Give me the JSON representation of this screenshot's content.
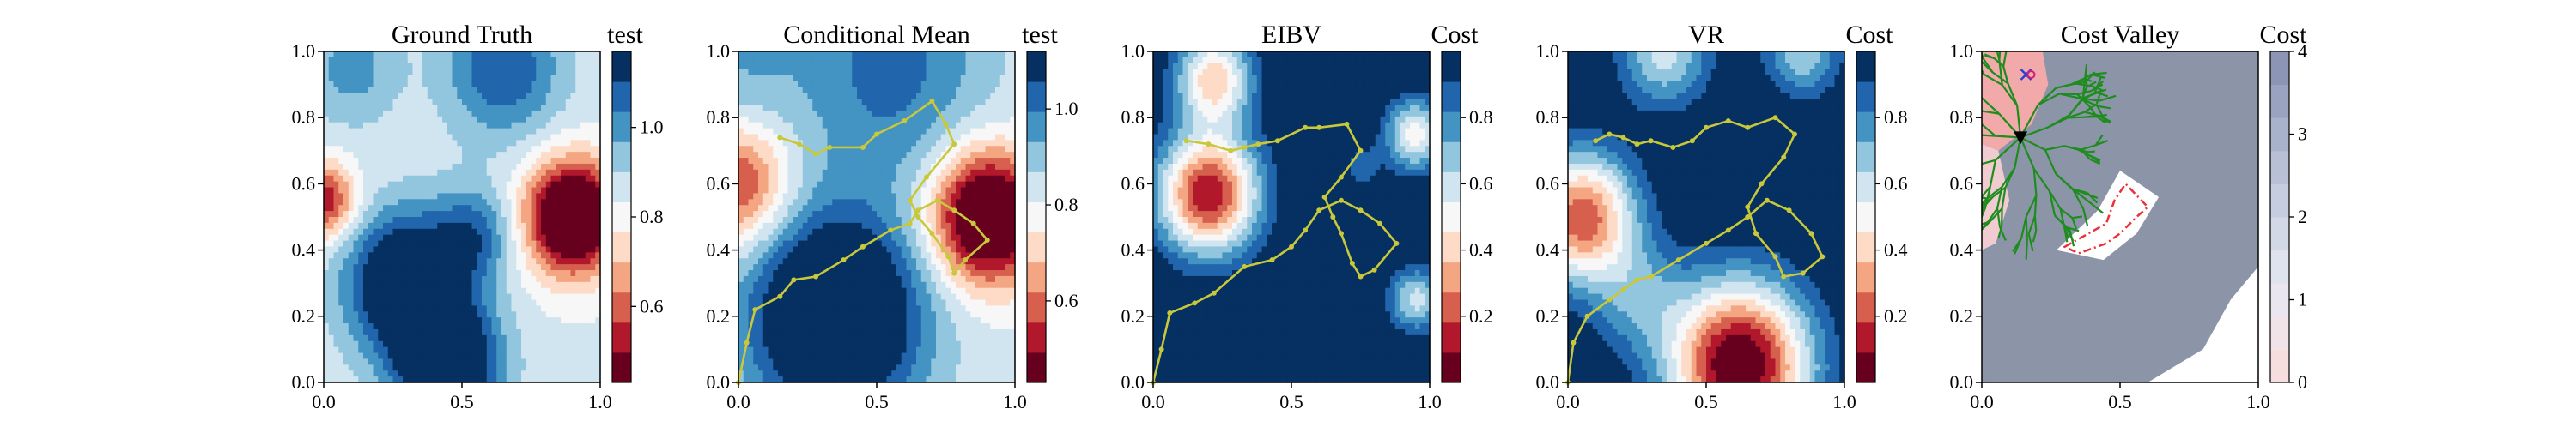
{
  "palette": {
    "rdbu": [
      "#67001f",
      "#b2182b",
      "#d6604d",
      "#f4a582",
      "#fddbc7",
      "#f7f7f7",
      "#d1e5f0",
      "#92c5de",
      "#4393c3",
      "#2166ac",
      "#053061"
    ],
    "path_color": "#c8c83a",
    "tree_color": "#1e8c1e",
    "valley_grey": "#8c95a8",
    "polygon_color": "#e8313b"
  },
  "chart_data": [
    {
      "type": "heatmap",
      "title": "Ground Truth",
      "colorbar": {
        "label": "test",
        "ticks": [
          "0.6",
          "0.8",
          "1.0"
        ],
        "tick_values": [
          0.6,
          0.8,
          1.0
        ],
        "range": [
          0.43,
          1.17
        ]
      },
      "x_ticks": [
        "0.0",
        "0.5",
        "1.0"
      ],
      "y_ticks": [
        "0.0",
        "0.2",
        "0.4",
        "0.6",
        "0.8",
        "1.0"
      ],
      "xlim": [
        0,
        1
      ],
      "ylim": [
        0,
        1
      ],
      "field": [
        {
          "x": 0.0,
          "y": 0.55,
          "z": -0.35,
          "s": 0.08
        },
        {
          "x": 0.9,
          "y": 0.5,
          "z": -0.6,
          "s": 0.12
        },
        {
          "x": 0.3,
          "y": 0.3,
          "z": 0.45,
          "s": 0.15
        },
        {
          "x": 0.45,
          "y": 0.05,
          "z": 0.45,
          "s": 0.13
        },
        {
          "x": 0.55,
          "y": 0.45,
          "z": 0.2,
          "s": 0.1
        },
        {
          "x": 0.65,
          "y": 0.95,
          "z": 0.25,
          "s": 0.15
        },
        {
          "x": 0.1,
          "y": 0.95,
          "z": 0.15,
          "s": 0.12
        }
      ],
      "field_base": 0.85,
      "path": []
    },
    {
      "type": "heatmap",
      "title": "Conditional Mean",
      "colorbar": {
        "label": "test",
        "ticks": [
          "0.6",
          "0.8",
          "1.0"
        ],
        "tick_values": [
          0.6,
          0.8,
          1.0
        ],
        "range": [
          0.43,
          1.12
        ]
      },
      "x_ticks": [
        "0.0",
        "0.5",
        "1.0"
      ],
      "y_ticks": [
        "0.0",
        "0.2",
        "0.4",
        "0.6",
        "0.8",
        "1.0"
      ],
      "xlim": [
        0,
        1
      ],
      "ylim": [
        0,
        1
      ],
      "field": [
        {
          "x": 0.0,
          "y": 0.6,
          "z": -0.3,
          "s": 0.13
        },
        {
          "x": 0.9,
          "y": 0.5,
          "z": -0.55,
          "s": 0.14
        },
        {
          "x": 0.35,
          "y": 0.2,
          "z": 0.5,
          "s": 0.22
        },
        {
          "x": 0.55,
          "y": 0.95,
          "z": 0.2,
          "s": 0.25
        },
        {
          "x": 0.0,
          "y": 0.95,
          "z": 0.1,
          "s": 0.15
        }
      ],
      "field_base": 0.82,
      "path": [
        [
          0.0,
          0.0
        ],
        [
          0.03,
          0.12
        ],
        [
          0.06,
          0.22
        ],
        [
          0.15,
          0.26
        ],
        [
          0.2,
          0.31
        ],
        [
          0.28,
          0.32
        ],
        [
          0.38,
          0.37
        ],
        [
          0.45,
          0.41
        ],
        [
          0.55,
          0.46
        ],
        [
          0.62,
          0.48
        ],
        [
          0.65,
          0.52
        ],
        [
          0.72,
          0.55
        ],
        [
          0.78,
          0.52
        ],
        [
          0.85,
          0.48
        ],
        [
          0.9,
          0.43
        ],
        [
          0.82,
          0.37
        ],
        [
          0.78,
          0.33
        ],
        [
          0.76,
          0.38
        ],
        [
          0.7,
          0.45
        ],
        [
          0.65,
          0.5
        ],
        [
          0.62,
          0.55
        ],
        [
          0.68,
          0.62
        ],
        [
          0.78,
          0.72
        ],
        [
          0.75,
          0.78
        ],
        [
          0.7,
          0.85
        ],
        [
          0.6,
          0.79
        ],
        [
          0.5,
          0.75
        ],
        [
          0.45,
          0.71
        ],
        [
          0.33,
          0.71
        ],
        [
          0.28,
          0.69
        ],
        [
          0.22,
          0.72
        ],
        [
          0.15,
          0.74
        ]
      ]
    },
    {
      "type": "heatmap",
      "title": "EIBV",
      "colorbar": {
        "label": "Cost",
        "ticks": [
          "0.2",
          "0.4",
          "0.6",
          "0.8"
        ],
        "tick_values": [
          0.2,
          0.4,
          0.6,
          0.8
        ],
        "range": [
          0.0,
          1.0
        ]
      },
      "x_ticks": [
        "0.0",
        "0.5",
        "1.0"
      ],
      "y_ticks": [
        "0.0",
        "0.2",
        "0.4",
        "0.6",
        "0.8",
        "1.0"
      ],
      "xlim": [
        0,
        1
      ],
      "ylim": [
        0,
        1
      ],
      "field": [
        {
          "x": 0.2,
          "y": 0.57,
          "z": -0.95,
          "s": 0.13
        },
        {
          "x": 0.22,
          "y": 0.92,
          "z": -0.65,
          "s": 0.1
        },
        {
          "x": 0.95,
          "y": 0.75,
          "z": -0.55,
          "s": 0.08
        },
        {
          "x": 0.95,
          "y": 0.25,
          "z": -0.45,
          "s": 0.07
        },
        {
          "x": 0.75,
          "y": 0.65,
          "z": -0.2,
          "s": 0.05
        }
      ],
      "field_base": 1.05,
      "path": [
        [
          0.0,
          0.0
        ],
        [
          0.03,
          0.1
        ],
        [
          0.06,
          0.21
        ],
        [
          0.15,
          0.24
        ],
        [
          0.22,
          0.27
        ],
        [
          0.33,
          0.35
        ],
        [
          0.43,
          0.37
        ],
        [
          0.5,
          0.41
        ],
        [
          0.55,
          0.46
        ],
        [
          0.6,
          0.52
        ],
        [
          0.68,
          0.55
        ],
        [
          0.75,
          0.52
        ],
        [
          0.82,
          0.48
        ],
        [
          0.88,
          0.42
        ],
        [
          0.8,
          0.34
        ],
        [
          0.75,
          0.32
        ],
        [
          0.72,
          0.36
        ],
        [
          0.68,
          0.45
        ],
        [
          0.65,
          0.5
        ],
        [
          0.62,
          0.56
        ],
        [
          0.68,
          0.62
        ],
        [
          0.75,
          0.7
        ],
        [
          0.7,
          0.78
        ],
        [
          0.6,
          0.77
        ],
        [
          0.55,
          0.77
        ],
        [
          0.45,
          0.73
        ],
        [
          0.38,
          0.72
        ],
        [
          0.33,
          0.71
        ],
        [
          0.28,
          0.7
        ],
        [
          0.2,
          0.72
        ],
        [
          0.12,
          0.73
        ]
      ]
    },
    {
      "type": "heatmap",
      "title": "VR",
      "colorbar": {
        "label": "Cost",
        "ticks": [
          "0.2",
          "0.4",
          "0.6",
          "0.8"
        ],
        "tick_values": [
          0.2,
          0.4,
          0.6,
          0.8
        ],
        "range": [
          0.0,
          1.0
        ]
      },
      "x_ticks": [
        "0.0",
        "0.5",
        "1.0"
      ],
      "y_ticks": [
        "0.0",
        "0.2",
        "0.4",
        "0.6",
        "0.8",
        "1.0"
      ],
      "xlim": [
        0,
        1
      ],
      "ylim": [
        0,
        1
      ],
      "field": [
        {
          "x": 0.62,
          "y": 0.05,
          "z": -1.1,
          "s": 0.18
        },
        {
          "x": 0.05,
          "y": 0.5,
          "z": -0.85,
          "s": 0.14
        },
        {
          "x": 0.35,
          "y": 1.0,
          "z": -0.45,
          "s": 0.12
        },
        {
          "x": 0.85,
          "y": 1.0,
          "z": -0.4,
          "s": 0.1
        },
        {
          "x": 0.25,
          "y": 0.25,
          "z": -0.25,
          "s": 0.12
        }
      ],
      "field_base": 1.05,
      "path": [
        [
          0.0,
          0.0
        ],
        [
          0.02,
          0.12
        ],
        [
          0.07,
          0.2
        ],
        [
          0.15,
          0.25
        ],
        [
          0.2,
          0.28
        ],
        [
          0.25,
          0.31
        ],
        [
          0.3,
          0.32
        ],
        [
          0.4,
          0.37
        ],
        [
          0.5,
          0.42
        ],
        [
          0.58,
          0.46
        ],
        [
          0.65,
          0.5
        ],
        [
          0.72,
          0.55
        ],
        [
          0.8,
          0.52
        ],
        [
          0.88,
          0.45
        ],
        [
          0.92,
          0.38
        ],
        [
          0.85,
          0.33
        ],
        [
          0.78,
          0.32
        ],
        [
          0.75,
          0.38
        ],
        [
          0.68,
          0.45
        ],
        [
          0.65,
          0.53
        ],
        [
          0.7,
          0.6
        ],
        [
          0.78,
          0.68
        ],
        [
          0.82,
          0.75
        ],
        [
          0.75,
          0.8
        ],
        [
          0.65,
          0.77
        ],
        [
          0.58,
          0.79
        ],
        [
          0.5,
          0.77
        ],
        [
          0.45,
          0.73
        ],
        [
          0.38,
          0.71
        ],
        [
          0.3,
          0.73
        ],
        [
          0.25,
          0.72
        ],
        [
          0.2,
          0.74
        ],
        [
          0.15,
          0.75
        ],
        [
          0.1,
          0.73
        ]
      ]
    },
    {
      "type": "heatmap",
      "title": "Cost Valley",
      "colorbar": {
        "label": "Cost",
        "ticks": [
          "0",
          "1",
          "2",
          "3",
          "4"
        ],
        "tick_values": [
          0,
          1,
          2,
          3,
          4
        ],
        "range": [
          0,
          4
        ]
      },
      "x_ticks": [
        "0.0",
        "0.5",
        "1.0"
      ],
      "y_ticks": [
        "0.0",
        "0.2",
        "0.4",
        "0.6",
        "0.8",
        "1.0"
      ],
      "xlim": [
        0,
        1
      ],
      "ylim": [
        0,
        1
      ],
      "polygon": [
        [
          0.3,
          0.41
        ],
        [
          0.45,
          0.48
        ],
        [
          0.48,
          0.55
        ],
        [
          0.52,
          0.6
        ],
        [
          0.6,
          0.53
        ],
        [
          0.56,
          0.5
        ],
        [
          0.5,
          0.45
        ],
        [
          0.45,
          0.42
        ],
        [
          0.35,
          0.39
        ]
      ],
      "current_marker": [
        0.14,
        0.74
      ],
      "previous_marker": [
        0.16,
        0.93
      ],
      "path": []
    }
  ]
}
